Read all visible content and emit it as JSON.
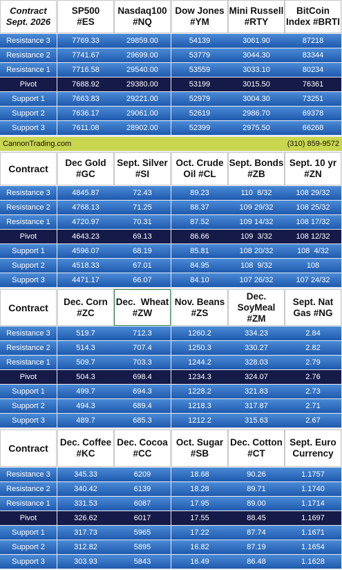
{
  "sections": [
    {
      "header": [
        [
          "Contract",
          "Sept. 2026"
        ],
        [
          "SP500",
          "#ES"
        ],
        [
          "Nasdaq100",
          "#NQ"
        ],
        [
          "Dow Jones",
          "#YM"
        ],
        [
          "Mini Russell",
          "#RTY"
        ],
        [
          "BitCoin",
          "Index #BRTI"
        ]
      ],
      "rows": [
        [
          "Resistance 3",
          "7769.33",
          "29859.00",
          "54139",
          "3061.90",
          "87218"
        ],
        [
          "Resistance 2",
          "7741.67",
          "29699.00",
          "53779",
          "3044.30",
          "83344"
        ],
        [
          "Resistance 1",
          "7716.58",
          "29540.00",
          "53559",
          "3033.10",
          "80234"
        ],
        [
          "Pivot",
          "7688.92",
          "29380.00",
          "53199",
          "3015.50",
          "76361"
        ],
        [
          "Support 1",
          "7663.83",
          "29221.00",
          "52979",
          "3004.30",
          "73251"
        ],
        [
          "Support 2",
          "7636.17",
          "29061.00",
          "52619",
          "2986.70",
          "69378"
        ],
        [
          "Support 3",
          "7611.08",
          "28902.00",
          "52399",
          "2975.50",
          "66268"
        ]
      ]
    },
    {
      "header": [
        [
          "Contract"
        ],
        [
          "Dec Gold",
          "#GC"
        ],
        [
          "Sept. Silver",
          "#SI"
        ],
        [
          "Oct. Crude",
          "Oil #CL"
        ],
        [
          "Sept. Bonds",
          "#ZB"
        ],
        [
          "Sept. 10 yr",
          "#ZN"
        ]
      ],
      "rows": [
        [
          "Resistance 3",
          "4845.87",
          "72.43",
          "89.23",
          "110  8/32",
          "108 29/32"
        ],
        [
          "Resistance 2",
          "4768.13",
          "71.25",
          "88.37",
          "109 29/32",
          "108 25/32"
        ],
        [
          "Resistance 1",
          "4720.97",
          "70.31",
          "87.52",
          "109 14/32",
          "108 17/32"
        ],
        [
          "Pivot",
          "4643.23",
          "69.13",
          "86.66",
          "109  3/32",
          "108 12/32"
        ],
        [
          "Support 1",
          "4596.07",
          "68.19",
          "85.81",
          "108 20/32",
          "108  4/32"
        ],
        [
          "Support 2",
          "4518.33",
          "67.01",
          "84.95",
          "108  9/32",
          "108"
        ],
        [
          "Support 3",
          "4471.17",
          "66.07",
          "84.10",
          "107 26/32",
          "107 24/32"
        ]
      ]
    },
    {
      "header": [
        [
          "Contract"
        ],
        [
          "Dec. Corn",
          "#ZC"
        ],
        [
          "Dec.  Wheat",
          "#ZW"
        ],
        [
          "Nov. Beans",
          "#ZS"
        ],
        [
          "Dec.",
          "SoyMeal",
          "#ZM"
        ],
        [
          "Sept. Nat",
          "Gas #NG"
        ]
      ],
      "rows": [
        [
          "Resistance 3",
          "519.7",
          "712.3",
          "1260.2",
          "334.23",
          "2.84"
        ],
        [
          "Resistance 2",
          "514.3",
          "707.4",
          "1250.3",
          "330.27",
          "2.82"
        ],
        [
          "Resistance 1",
          "509.7",
          "703.3",
          "1244.2",
          "328.03",
          "2.79"
        ],
        [
          "Pivot",
          "504.3",
          "698.4",
          "1234.3",
          "324.07",
          "2.76"
        ],
        [
          "Support 1",
          "499.7",
          "694.3",
          "1228.2",
          "321.83",
          "2.73"
        ],
        [
          "Support 2",
          "494.3",
          "689.4",
          "1218.3",
          "317.87",
          "2.71"
        ],
        [
          "Support 3",
          "489.7",
          "685.3",
          "1212.2",
          "315.63",
          "2.67"
        ]
      ]
    },
    {
      "header": [
        [
          "Contract"
        ],
        [
          "Dec. Coffee",
          "#KC"
        ],
        [
          "Dec. Cocoa",
          "#CC"
        ],
        [
          "Oct. Sugar",
          "#SB"
        ],
        [
          "Dec. Cotton",
          "#CT"
        ],
        [
          "Sept. Euro",
          "Currency"
        ]
      ],
      "rows": [
        [
          "Resistance 3",
          "345.33",
          "6209",
          "18.68",
          "90.26",
          "1.1757"
        ],
        [
          "Resistance 2",
          "340.42",
          "6139",
          "18.28",
          "89.71",
          "1.1740"
        ],
        [
          "Resistance 1",
          "331.53",
          "6087",
          "17.95",
          "89.00",
          "1.1714"
        ],
        [
          "Pivot",
          "326.62",
          "6017",
          "17.55",
          "88.45",
          "1.1697"
        ],
        [
          "Support 1",
          "317.73",
          "5965",
          "17.22",
          "87.74",
          "1.1671"
        ],
        [
          "Support 2",
          "312.82",
          "5895",
          "16.82",
          "87.19",
          "1.1654"
        ],
        [
          "Support 3",
          "303.93",
          "5843",
          "16.49",
          "86.48",
          "1.1628"
        ]
      ]
    }
  ],
  "banner": {
    "left": "CannonTrading.com",
    "right": "(310) 859-9572"
  }
}
